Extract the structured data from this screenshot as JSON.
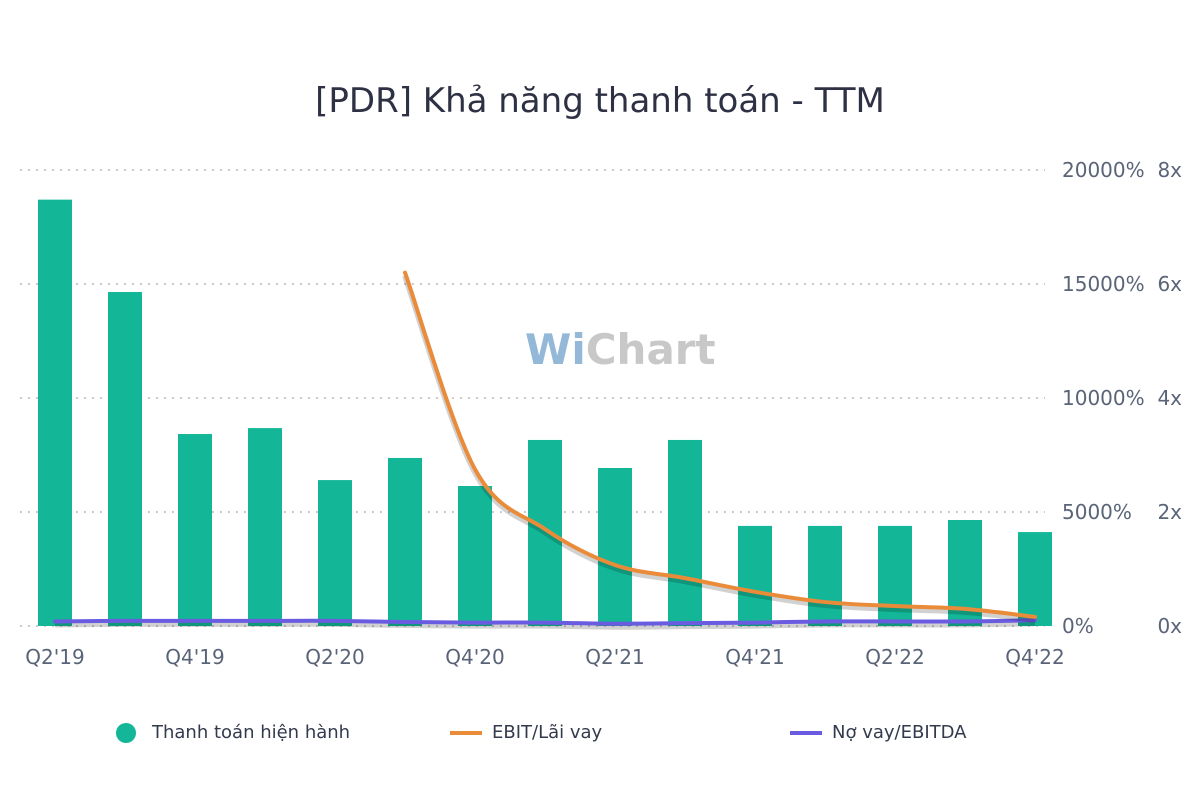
{
  "chart_data": {
    "type": "bar",
    "title": "[PDR] Khả năng thanh toán - TTM",
    "categories": [
      "Q2'19",
      "Q3'19",
      "Q4'19",
      "Q1'20",
      "Q2'20",
      "Q3'20",
      "Q4'20",
      "Q1'21",
      "Q2'21",
      "Q3'21",
      "Q4'21",
      "Q1'22",
      "Q2'22",
      "Q3'22",
      "Q4'22"
    ],
    "x_tick_labels": [
      "Q2'19",
      "Q4'19",
      "Q2'20",
      "Q4'20",
      "Q2'21",
      "Q4'21",
      "Q2'22",
      "Q4'22"
    ],
    "y_left": {
      "range": [
        0,
        20000
      ],
      "ticks": [
        "0%",
        "5000%",
        "10000%",
        "15000%",
        "20000%"
      ],
      "values": [
        0,
        5000,
        10000,
        15000,
        20000
      ]
    },
    "y_right": {
      "range": [
        0,
        8
      ],
      "ticks": [
        "0x",
        "2x",
        "4x",
        "6x",
        "8x"
      ],
      "values": [
        0,
        2,
        4,
        6,
        8
      ]
    },
    "grid": true,
    "legend_placement": "bottom",
    "watermark": "WiChart",
    "series": [
      {
        "name": "Thanh toán hiện hành",
        "type": "bar",
        "axis": "left",
        "color": "#13b797",
        "values": [
          18700,
          14650,
          8420,
          8680,
          6400,
          7370,
          6140,
          8160,
          6930,
          8160,
          4390,
          4390,
          4390,
          4650,
          4120
        ]
      },
      {
        "name": "EBIT/Lãi vay",
        "type": "line",
        "axis": "right",
        "color": "#ea8b3a",
        "values": [
          null,
          null,
          null,
          null,
          null,
          6.2,
          2.75,
          1.7,
          1.07,
          0.84,
          0.6,
          0.42,
          0.35,
          0.3,
          0.16
        ]
      },
      {
        "name": "Nợ vay/EBITDA",
        "type": "line",
        "axis": "right",
        "color": "#6a5ce0",
        "values": [
          0.08,
          0.09,
          0.09,
          0.09,
          0.09,
          0.07,
          0.06,
          0.06,
          0.04,
          0.05,
          0.06,
          0.08,
          0.08,
          0.08,
          0.1
        ]
      }
    ]
  }
}
